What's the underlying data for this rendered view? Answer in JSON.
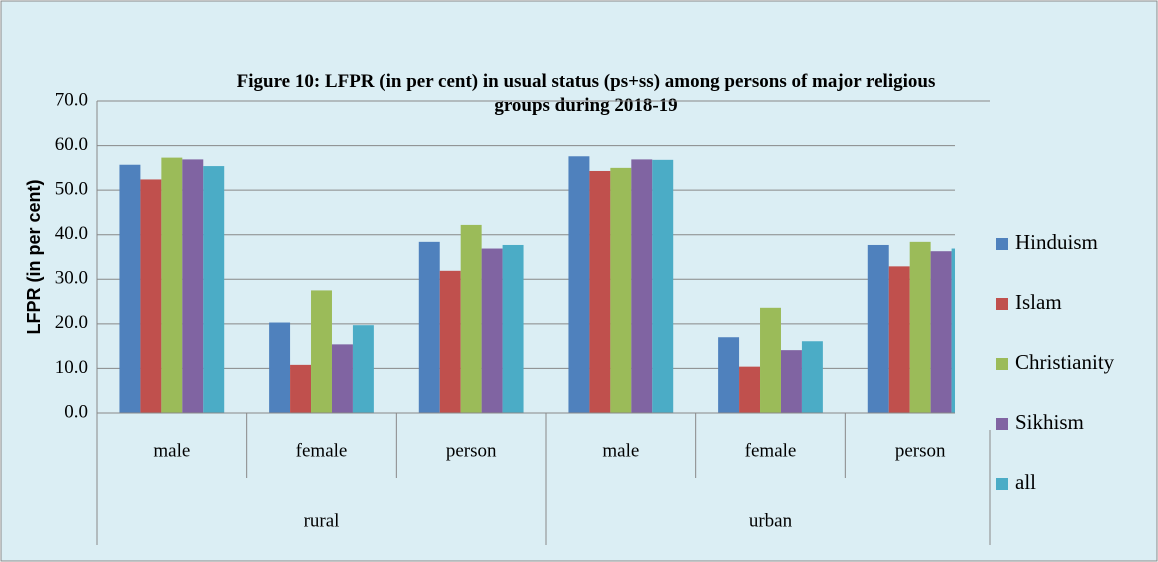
{
  "chart_data": {
    "type": "bar",
    "title": "Figure 10: LFPR (in per cent) in usual status (ps+ss) among persons of major religious groups during 2018-19",
    "y_label": "LFPR (in per cent)",
    "categories": [
      "male",
      "female",
      "person",
      "male",
      "female",
      "person"
    ],
    "group_labels": [
      "rural",
      "urban"
    ],
    "series": [
      {
        "name": "Hinduism",
        "color": "#4f81bd",
        "values": [
          55.7,
          20.3,
          38.4,
          57.6,
          17.0,
          37.7
        ]
      },
      {
        "name": "Islam",
        "color": "#c0504d",
        "values": [
          52.4,
          10.8,
          31.9,
          54.3,
          10.4,
          32.9
        ]
      },
      {
        "name": "Christianity",
        "color": "#9bbb59",
        "values": [
          57.3,
          27.5,
          42.2,
          55.0,
          23.6,
          38.4
        ]
      },
      {
        "name": "Sikhism",
        "color": "#8064a2",
        "values": [
          56.9,
          15.4,
          36.9,
          56.9,
          14.1,
          36.3
        ]
      },
      {
        "name": "all",
        "color": "#4bacc6",
        "values": [
          55.4,
          19.7,
          37.7,
          56.8,
          16.1,
          36.9
        ]
      }
    ],
    "ylim": [
      0,
      70
    ],
    "yticks": [
      {
        "value": 0,
        "label": "0.0"
      },
      {
        "value": 10,
        "label": "10.0"
      },
      {
        "value": 20,
        "label": "20.0"
      },
      {
        "value": 30,
        "label": "30.0"
      },
      {
        "value": 40,
        "label": "40.0"
      },
      {
        "value": 50,
        "label": "50.0"
      },
      {
        "value": 60,
        "label": "60.0"
      },
      {
        "value": 70,
        "label": "70.0"
      }
    ],
    "grid": true,
    "legend": "right"
  }
}
